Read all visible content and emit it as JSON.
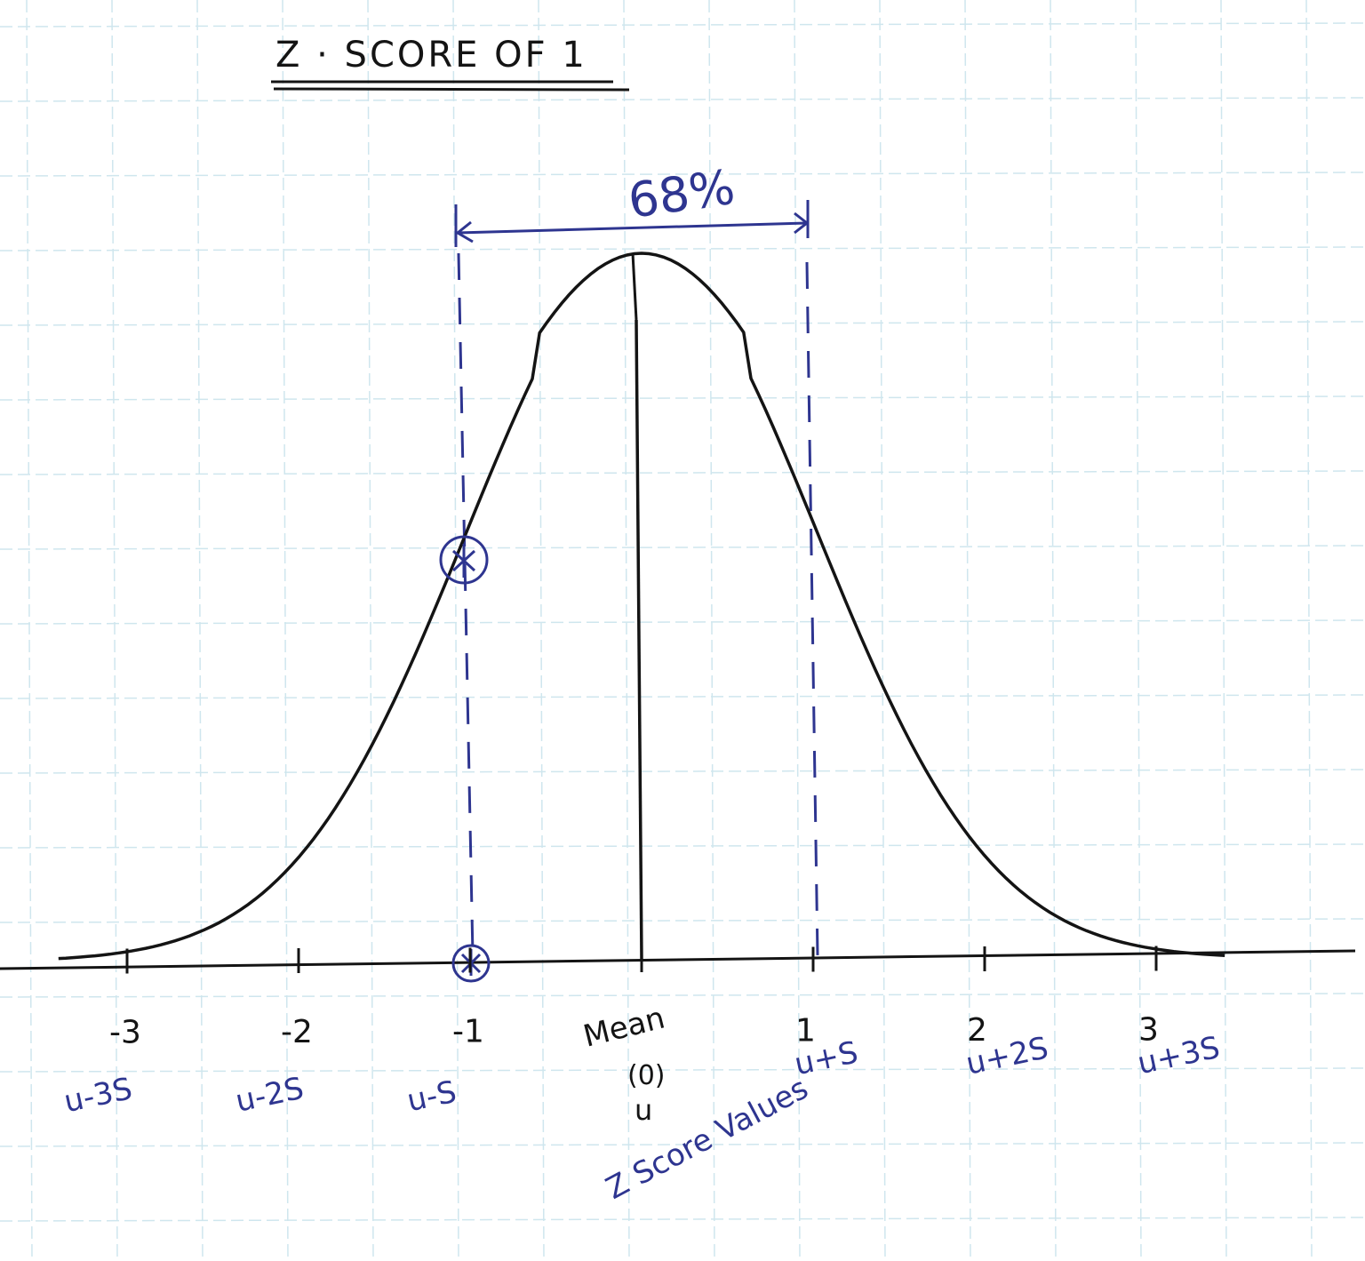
{
  "title": "Z · SCORE OF 1",
  "annotation_percent": "68%",
  "z_ticks": [
    {
      "z": -3,
      "label": "-3",
      "sigma_label": "u-3S"
    },
    {
      "z": -2,
      "label": "-2",
      "sigma_label": "u-2S"
    },
    {
      "z": -1,
      "label": "-1",
      "sigma_label": "u-S"
    },
    {
      "z": 0,
      "label": "Mean",
      "sub1": "(0)",
      "sub2": "u",
      "sigma_label": ""
    },
    {
      "z": 1,
      "label": "1",
      "sigma_label": "u+S"
    },
    {
      "z": 2,
      "label": "2",
      "sigma_label": "u+2S"
    },
    {
      "z": 3,
      "label": "3",
      "sigma_label": "u+3S"
    }
  ],
  "xlabel": "Z Score Values",
  "colors": {
    "ink": "#141414",
    "blue_ink": "#2e3590",
    "grid": "#cfe6ee",
    "paper": "#ffffff"
  }
}
